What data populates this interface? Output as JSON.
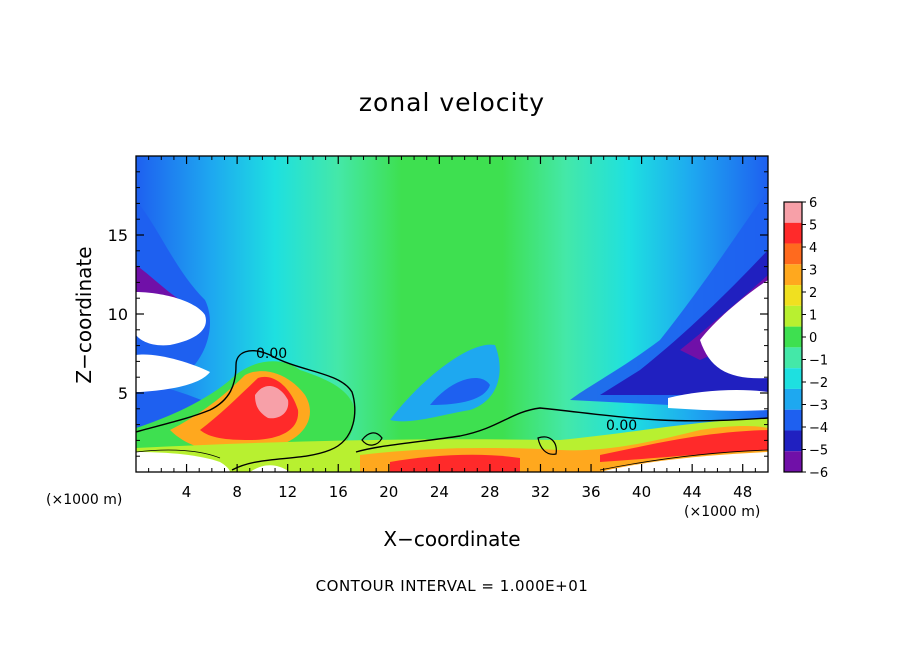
{
  "title": "zonal velocity",
  "footnote": "CONTOUR INTERVAL = 1.000E+01",
  "chart_data": {
    "type": "heatmap",
    "title": "zonal velocity",
    "xlabel": "X−coordinate",
    "ylabel": "Z−coordinate",
    "x_unit_label": "(×1000 m)",
    "y_unit_label": "(×1000 m)",
    "xlim": [
      0,
      50
    ],
    "ylim": [
      0,
      20
    ],
    "x_ticks": [
      4,
      8,
      12,
      16,
      20,
      24,
      28,
      32,
      36,
      40,
      44,
      48
    ],
    "y_ticks": [
      5,
      10,
      15
    ],
    "colorbar": {
      "levels": [
        6,
        5,
        4,
        3,
        2,
        1,
        0,
        -1,
        -2,
        -3,
        -4,
        -5,
        -6
      ],
      "labels": [
        "6",
        "5",
        "4",
        "3",
        "2",
        "1",
        "0",
        "−1",
        "−2",
        "−3",
        "−4",
        "−5",
        "−6"
      ],
      "colors": [
        "#f7a0a8",
        "#ff2a2a",
        "#ff6a1e",
        "#ffa81e",
        "#f0e020",
        "#b8f030",
        "#3ee050",
        "#44e8a8",
        "#1ee0e0",
        "#1ea8f0",
        "#1e60f0",
        "#2020c0",
        "#7010a8"
      ]
    },
    "contour_labels": [
      "0.00",
      "0.00"
    ],
    "contour_interval": "1.000E+01",
    "grid": false
  }
}
